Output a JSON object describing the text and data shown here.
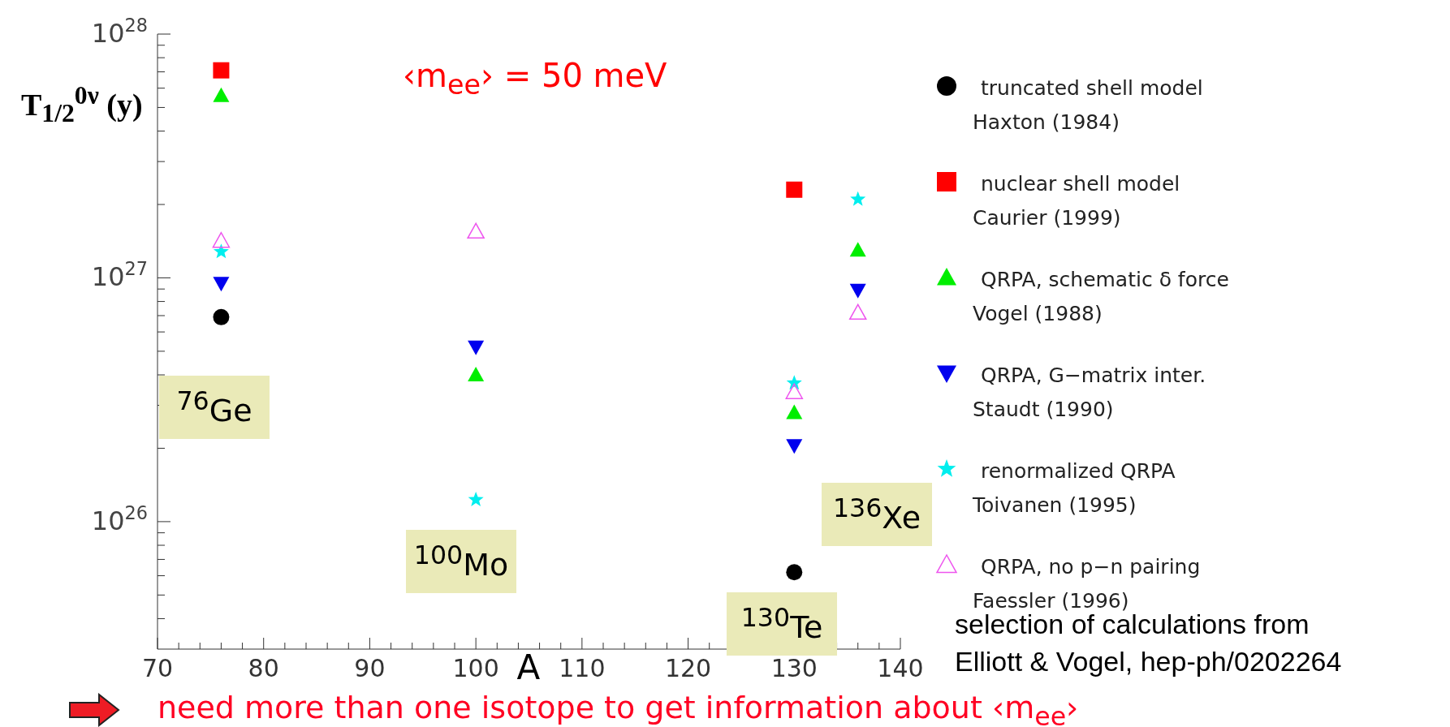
{
  "chart_data": {
    "type": "scatter",
    "ylabel": "T$_{1/2}$$^{0ν}$ (y)",
    "xlabel": "A",
    "log": "y",
    "xlim": [
      70,
      140
    ],
    "xticks": [
      70,
      {
        "value": 72,
        "label": null
      },
      {
        "value": 74,
        "label": null
      },
      {
        "value": 76,
        "label": null
      },
      {
        "value": 78,
        "label": null
      },
      80,
      {
        "value": 82,
        "label": null
      },
      {
        "value": 84,
        "label": null
      },
      {
        "value": 86,
        "label": null
      },
      {
        "value": 88,
        "label": null
      },
      90,
      {
        "value": 92,
        "label": null
      },
      {
        "value": 94,
        "label": null
      },
      {
        "value": 96,
        "label": null
      },
      {
        "value": 98,
        "label": null
      },
      100,
      {
        "value": 102,
        "label": null
      },
      {
        "value": 104,
        "label": null
      },
      {
        "value": 106,
        "label": null
      },
      {
        "value": 108,
        "label": null
      },
      110,
      {
        "value": 112,
        "label": null
      },
      {
        "value": 114,
        "label": null
      },
      {
        "value": 116,
        "label": null
      },
      {
        "value": 118,
        "label": null
      },
      120,
      {
        "value": 122,
        "label": null
      },
      {
        "value": 124,
        "label": null
      },
      {
        "value": 126,
        "label": null
      },
      {
        "value": 128,
        "label": null
      },
      130,
      {
        "value": 132,
        "label": null
      },
      {
        "value": 134,
        "label": null
      },
      {
        "value": 136,
        "label": null
      },
      {
        "value": 138,
        "label": null
      },
      140
    ],
    "ylim": [
      3e+25,
      1e+28
    ],
    "yticks": [
      {
        "value": 4e+25,
        "label": null
      },
      {
        "value": 5e+25,
        "label": null
      },
      {
        "value": 6e+25,
        "label": null
      },
      {
        "value": 7e+25,
        "label": null
      },
      {
        "value": 8e+25,
        "label": null
      },
      {
        "value": 9e+25,
        "label": null
      },
      {
        "value": 1e+26,
        "label": "10$^{26}$"
      },
      {
        "value": 2e+26,
        "label": null
      },
      {
        "value": 3e+26,
        "label": null
      },
      {
        "value": 4e+26,
        "label": null
      },
      {
        "value": 5e+26,
        "label": null
      },
      {
        "value": 6e+26,
        "label": null
      },
      {
        "value": 7e+26,
        "label": null
      },
      {
        "value": 8e+26,
        "label": null
      },
      {
        "value": 9e+26,
        "label": null
      },
      {
        "value": 1e+27,
        "label": "10$^{27}$"
      },
      {
        "value": 2e+27,
        "label": null
      },
      {
        "value": 3e+27,
        "label": null
      },
      {
        "value": 4e+27,
        "label": null
      },
      {
        "value": 5e+27,
        "label": null
      },
      {
        "value": 6e+27,
        "label": null
      },
      {
        "value": 7e+27,
        "label": null
      },
      {
        "value": 8e+27,
        "label": null
      },
      {
        "value": 9e+27,
        "label": null
      },
      {
        "value": 1e+28,
        "label": "10$^{28}$"
      }
    ],
    "grid": false,
    "legend": "right",
    "series": [
      {
        "name": "truncated shell model\nHaxton (1984)",
        "color": "#000000",
        "marker": "circle",
        "x": [
          76,
          130
        ],
        "values": [
          6.9e+26,
          6.2e+25
        ]
      },
      {
        "name": "nuclear shell model\nCaurier (1999)",
        "color": "#ff0000",
        "marker": "square",
        "x": [
          76,
          130
        ],
        "values": [
          7.1e+27,
          2.3e+27
        ]
      },
      {
        "name": "QRPA, schematic δ force\nVogel (1988)",
        "color": "#00ee00",
        "marker": "triangle",
        "x": [
          76,
          100,
          130,
          136
        ],
        "values": [
          5.6e+27,
          4e+26,
          2.8e+26,
          1.3e+27
        ]
      },
      {
        "name": "QRPA, G−matrix inter.\nStaudt (1990)",
        "color": "#0000ee",
        "marker": "triangle-down",
        "x": [
          76,
          100,
          130,
          136
        ],
        "values": [
          9.5e+26,
          5.2e+26,
          2.05e+26,
          8.9e+26
        ]
      },
      {
        "name": "renormalized QRPA\nToivanen (1995)",
        "color": "#00eeee",
        "marker": "star",
        "x": [
          76,
          100,
          130,
          136
        ],
        "values": [
          1.28e+27,
          1.23e+26,
          3.7e+26,
          2.1e+27
        ]
      },
      {
        "name": "QRPA, no p−n pairing\nFaessler (1996)",
        "color": "#ee55ee",
        "marker": "triangle-open",
        "x": [
          76,
          100,
          130,
          136
        ],
        "values": [
          1.42e+27,
          1.55e+27,
          3.4e+26,
          7.2e+26
        ]
      }
    ],
    "annotations": [
      "‹m$_{ee}$› = 50 meV",
      "selection of calculations from\nElliott & Vogel, hep-ph/0202264",
      "need more than one isotope to get information about ‹m$_{ee}$›",
      "$^{76}$Ge",
      "$^{100}$Mo",
      "$^{130}$Te",
      "$^{136}$Xe"
    ]
  }
}
